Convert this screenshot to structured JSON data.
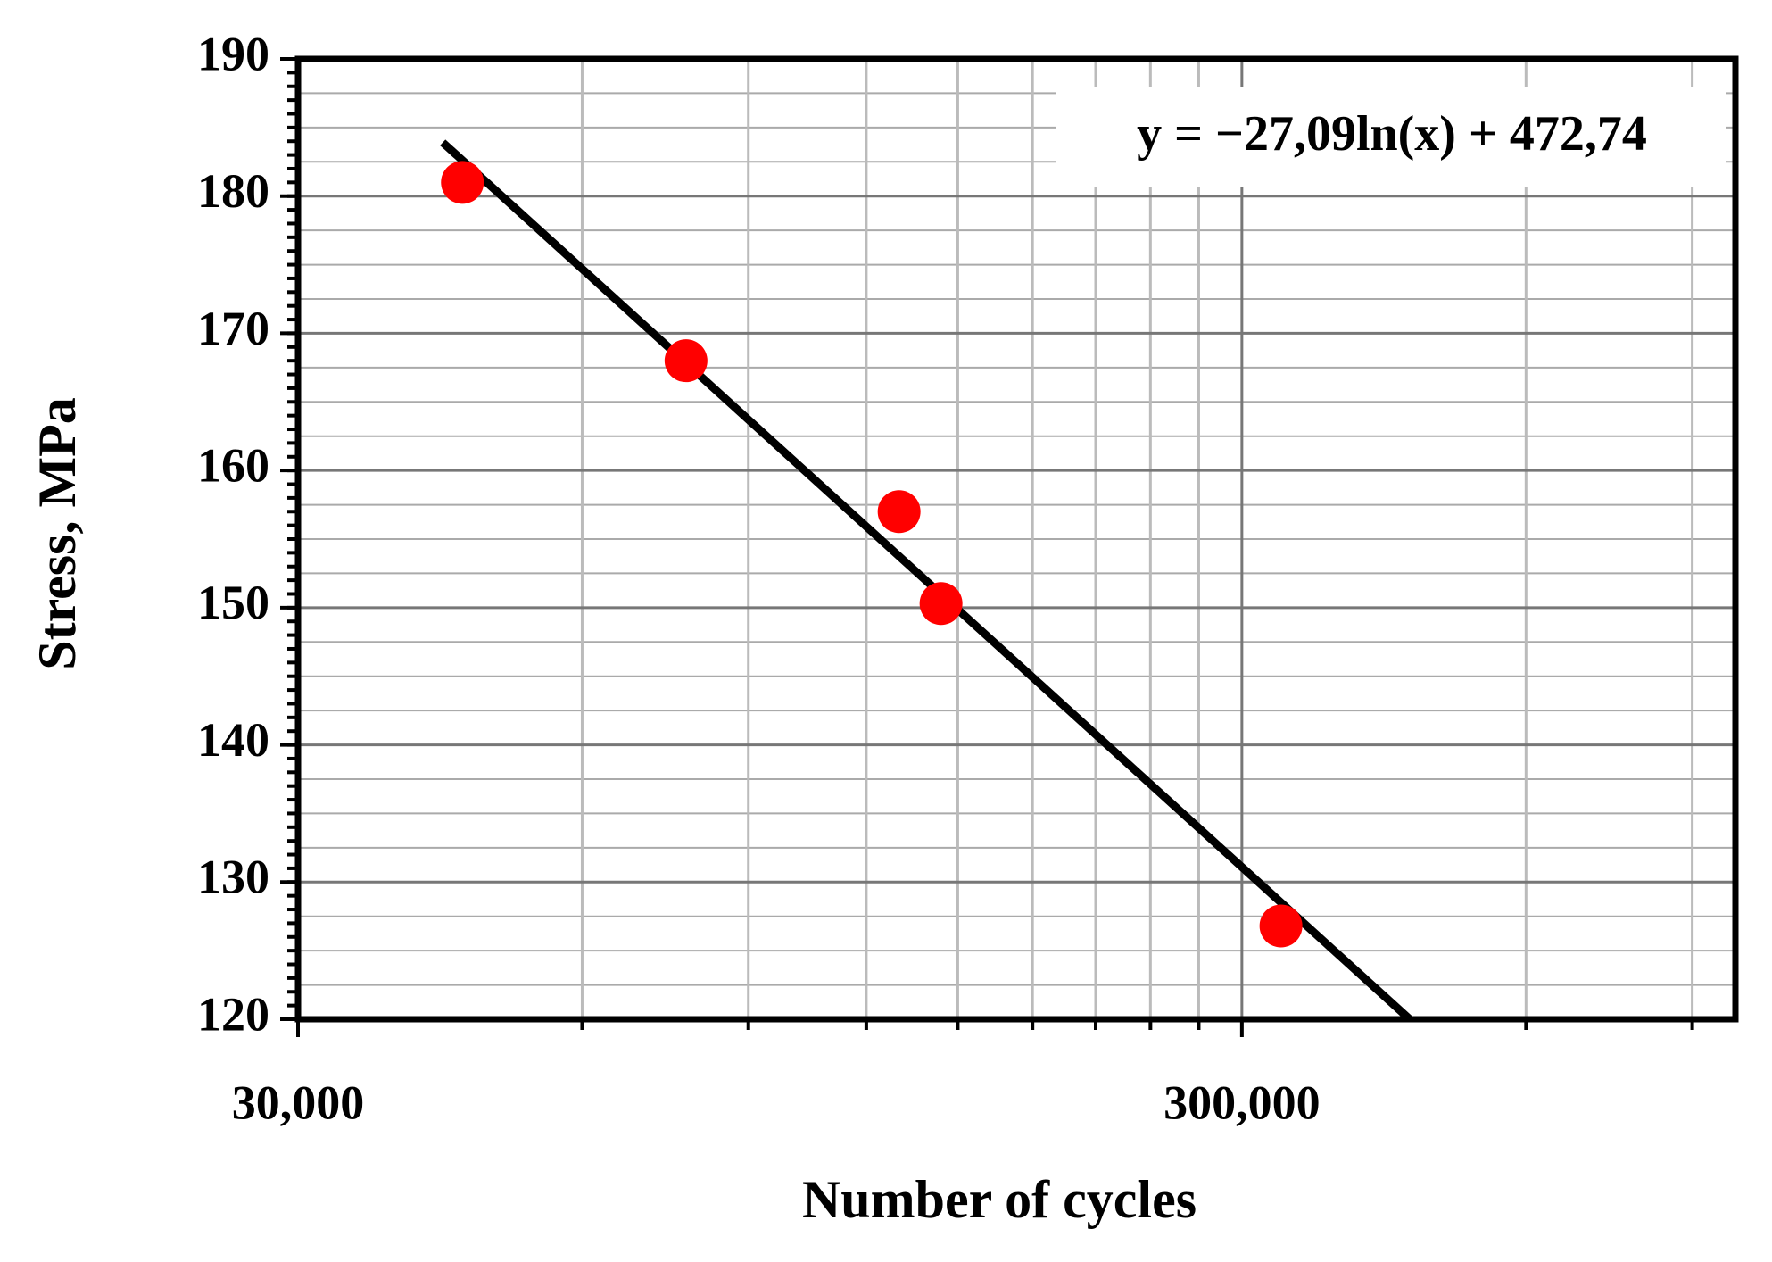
{
  "chart_data": {
    "type": "scatter",
    "x_label": "Number of cycles",
    "y_label": "Stress, MPa",
    "x": [
      44800,
      77300,
      130000,
      144000,
      330000
    ],
    "series": [
      {
        "color": "#ff0000",
        "values": [
          181,
          168,
          157,
          150.3,
          126.8
        ]
      }
    ],
    "xlim": [
      30000,
      1000000
    ],
    "xticks": [
      {
        "value": 30000,
        "label": "30,000"
      },
      {
        "value": 300000,
        "label": "300,000"
      }
    ],
    "x_minor_gridlines": [
      60000,
      90000,
      120000,
      150000,
      180000,
      210000,
      240000,
      270000,
      600000,
      900000
    ],
    "x_log": true,
    "ylim": [
      120,
      190
    ],
    "yticks": [
      120,
      130,
      140,
      150,
      160,
      170,
      180,
      190
    ],
    "y_minor_grid_step": 2.5,
    "y_minor_tick_step": 1,
    "grid": true,
    "trendline": {
      "label": "y = −27,09ln(x) + 472,74",
      "slope": -27.09,
      "intercept": 472.74,
      "xrange": [
        42700,
        452000
      ],
      "color": "#000000"
    }
  }
}
